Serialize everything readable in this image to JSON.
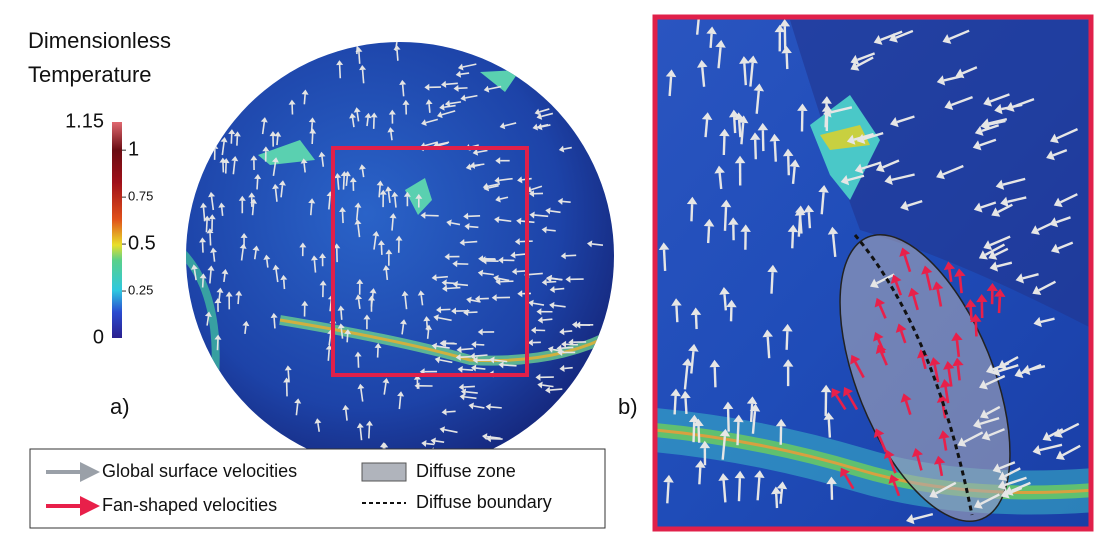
{
  "colorbar": {
    "title": [
      "Dimensionless",
      "Temperature"
    ],
    "ticks": [
      1.15,
      1,
      0.75,
      0.5,
      0.25,
      0
    ]
  },
  "panels": {
    "a": "a)",
    "b": "b)"
  },
  "legend": {
    "items": [
      "Global surface velocities",
      "Fan-shaped velocities",
      "Diffuse zone",
      "Diffuse boundary"
    ]
  }
}
